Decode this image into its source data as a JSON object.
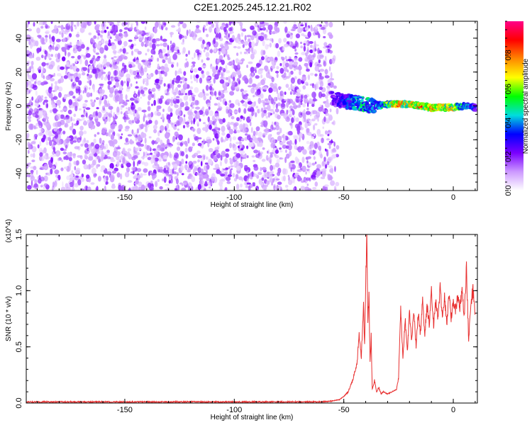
{
  "title": "C2E1.2025.245.12.21.R02",
  "chart_data": [
    {
      "type": "heatmap",
      "name": "spectrogram",
      "xlabel": "Height of straight line (km)",
      "ylabel": "Frequency (Hz)",
      "xlim": [
        -195,
        11
      ],
      "ylim": [
        -50,
        50
      ],
      "x_ticks": [
        -150,
        -100,
        -50,
        0
      ],
      "y_ticks": [
        -40,
        -20,
        0,
        20,
        40
      ],
      "noise_region_x": [
        -195,
        -52
      ],
      "signal_trace": {
        "x": [
          -55,
          -50,
          -45,
          -40,
          -35,
          -30,
          -25,
          -20,
          -15,
          -10,
          -5,
          0,
          5,
          10
        ],
        "freq": [
          4,
          3,
          2,
          1,
          0,
          1,
          1,
          1,
          0,
          -1,
          -1,
          -1,
          0,
          -1
        ],
        "amplitude": [
          0.25,
          0.35,
          0.45,
          0.5,
          0.4,
          0.6,
          0.85,
          0.7,
          0.85,
          0.8,
          0.75,
          0.7,
          0.5,
          0.35
        ]
      },
      "colorbar": {
        "label": "Normalized spectral amplitude",
        "range": [
          0,
          1
        ],
        "ticks": [
          "0.0",
          "0.2",
          "0.4",
          "0.6",
          "0.8"
        ],
        "colors": [
          "#ffffff",
          "#cc99ff",
          "#7a00ff",
          "#0000ff",
          "#00dddd",
          "#00ff00",
          "#ffff00",
          "#ff8800",
          "#ff0000",
          "#ff0088"
        ]
      }
    },
    {
      "type": "line",
      "name": "snr",
      "xlabel": "Height of straight line (km)",
      "ylabel": "SNR (10 * v/v)",
      "y_multiplier": "(x10^4)",
      "xlim": [
        -195,
        11
      ],
      "ylim": [
        0,
        1.5
      ],
      "x_ticks": [
        -150,
        -100,
        -50,
        0
      ],
      "y_ticks": [
        "0.0",
        "0.5",
        "1.0",
        "1.5"
      ],
      "color": "#e83030",
      "series": [
        {
          "x": [
            -195,
            -60,
            -55,
            -52,
            -50,
            -48,
            -46,
            -44,
            -43,
            -42,
            -41,
            -40.5,
            -40,
            -39.5,
            -39,
            -38.5,
            -38,
            -37.5,
            -37,
            -36,
            -35,
            -34,
            -33,
            -32,
            -30,
            -28,
            -26,
            -25,
            -24,
            -23,
            -22,
            -21,
            -20,
            -19,
            -18,
            -17,
            -16,
            -15,
            -14,
            -13,
            -12,
            -11,
            -10,
            -9,
            -8,
            -7,
            -6,
            -5,
            -4,
            -3,
            -2,
            -1,
            0,
            1,
            2,
            3,
            4,
            5,
            6,
            7,
            8,
            9,
            10
          ],
          "y": [
            0.01,
            0.01,
            0.02,
            0.03,
            0.06,
            0.1,
            0.2,
            0.35,
            0.6,
            0.4,
            0.9,
            0.5,
            1.05,
            1.5,
            0.7,
            0.95,
            0.35,
            0.6,
            0.12,
            0.2,
            0.1,
            0.14,
            0.08,
            0.1,
            0.08,
            0.1,
            0.12,
            0.22,
            0.85,
            0.4,
            0.75,
            0.45,
            0.8,
            0.55,
            0.82,
            0.5,
            0.8,
            0.62,
            0.9,
            0.6,
            0.88,
            0.7,
            1.0,
            0.68,
            0.92,
            0.75,
            1.02,
            0.78,
            0.95,
            0.7,
            0.98,
            0.76,
            0.9,
            0.82,
            0.95,
            0.85,
            1.0,
            0.75,
            1.22,
            0.55,
            0.9,
            1.0,
            0.8
          ]
        }
      ]
    }
  ]
}
